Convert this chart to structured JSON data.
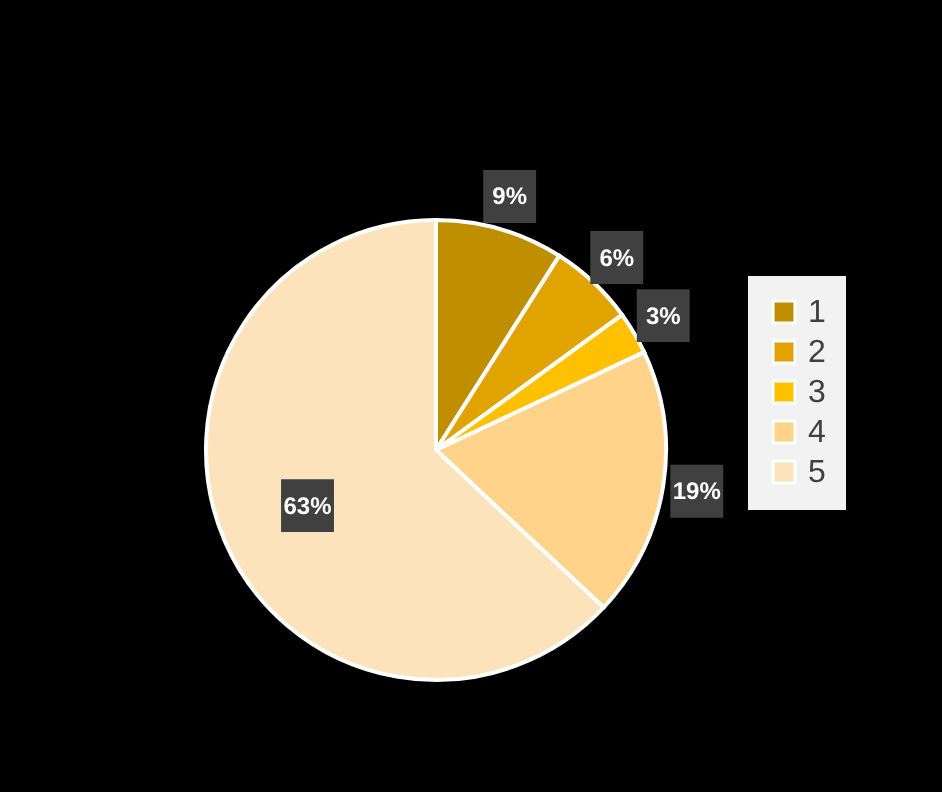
{
  "chart_data": {
    "type": "pie",
    "categories": [
      "1",
      "2",
      "3",
      "4",
      "5"
    ],
    "values": [
      9,
      6,
      3,
      19,
      63
    ],
    "colors": [
      "#bf8f00",
      "#e0a300",
      "#ffc000",
      "#ffd389",
      "#fde3bb"
    ],
    "value_labels": [
      "9%",
      "6%",
      "3%",
      "19%",
      "63%"
    ],
    "legend": "right"
  }
}
